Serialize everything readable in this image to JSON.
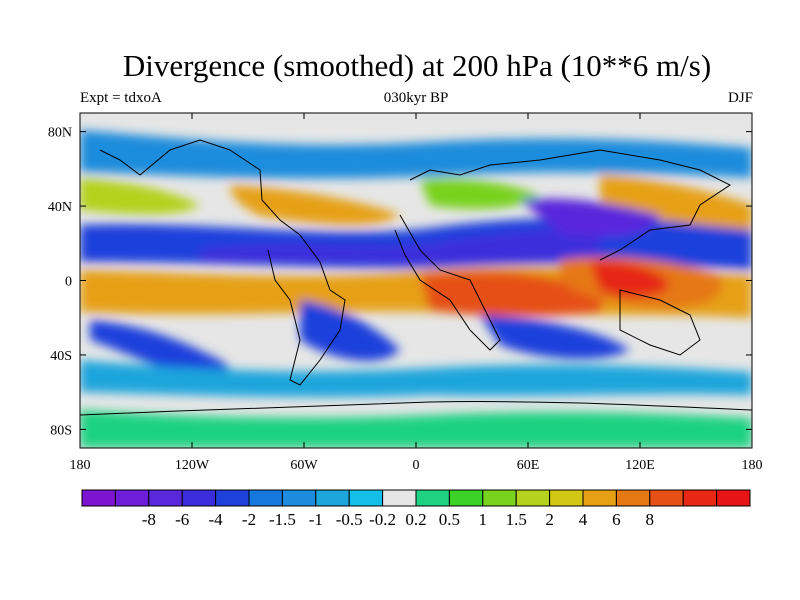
{
  "title": "Divergence (smoothed) at 200 hPa (10**6 m/s)",
  "experiment": "Expt = tdxoA",
  "period": "030kyr BP",
  "season": "DJF",
  "map": {
    "projection": "cylindrical equidistant",
    "lon_range": [
      -180,
      180
    ],
    "lat_range": [
      -90,
      90
    ],
    "x_ticks": [
      "180",
      "120W",
      "60W",
      "0",
      "60E",
      "120E",
      "180"
    ],
    "y_ticks": [
      "80N",
      "40N",
      "0",
      "40S",
      "80S"
    ]
  },
  "colorbar": {
    "colors": [
      "#7d14d2",
      "#6e1ed8",
      "#5a28dc",
      "#3c2ddc",
      "#1e41dc",
      "#1478dc",
      "#1e8cdc",
      "#1ea5dc",
      "#14bee6",
      "#e6e6e6",
      "#1ed282",
      "#3cd228",
      "#78d21e",
      "#b4d21e",
      "#d2c814",
      "#e6a014",
      "#e67814",
      "#e65014",
      "#e62814",
      "#e61414"
    ],
    "labels": [
      "-8",
      "-6",
      "-4",
      "-2",
      "-1.5",
      "-1",
      "-0.5",
      "-0.2",
      "0.2",
      "0.5",
      "1",
      "1.5",
      "2",
      "4",
      "6",
      "8"
    ]
  }
}
